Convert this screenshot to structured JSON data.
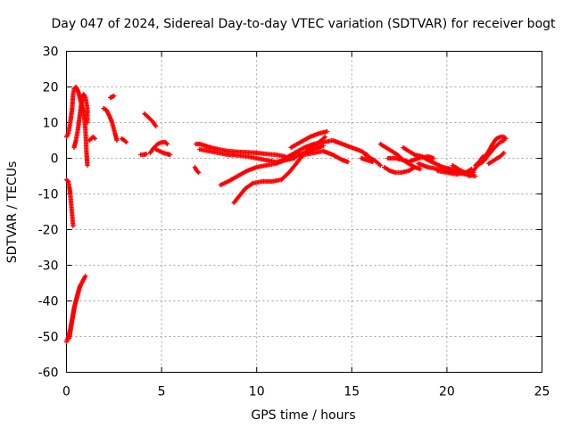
{
  "chart_data": {
    "type": "scatter",
    "title": "Day 047 of 2024, Sidereal Day-to-day VTEC variation (SDTVAR) for receiver bogt",
    "xlabel": "GPS time / hours",
    "ylabel": "SDTVAR / TECUs",
    "xlim": [
      0,
      25
    ],
    "ylim": [
      -60,
      30
    ],
    "xticks": [
      "0",
      "5",
      "10",
      "15",
      "20",
      "25"
    ],
    "yticks": [
      "30",
      "20",
      "10",
      "0",
      "-10",
      "-20",
      "-30",
      "-40",
      "-50",
      "-60"
    ],
    "grid": true,
    "marker": "plus",
    "color": "#ff0000",
    "tracks": [
      {
        "points": [
          [
            0.0,
            -51.5
          ],
          [
            0.1,
            -50
          ],
          [
            0.2,
            -48
          ],
          [
            0.3,
            -45
          ],
          [
            0.4,
            -42
          ],
          [
            0.5,
            -40
          ],
          [
            0.6,
            -38
          ],
          [
            0.7,
            -36
          ],
          [
            0.8,
            -35
          ],
          [
            0.9,
            -34
          ],
          [
            1.0,
            -33
          ]
        ]
      },
      {
        "points": [
          [
            0.15,
            -50.5
          ],
          [
            0.25,
            -47
          ],
          [
            0.35,
            -44
          ],
          [
            0.45,
            -41
          ],
          [
            0.55,
            -39
          ],
          [
            0.65,
            -37
          ],
          [
            0.75,
            -35.5
          ]
        ]
      },
      {
        "points": [
          [
            0.0,
            -6
          ],
          [
            0.1,
            -6.5
          ],
          [
            0.15,
            -8
          ],
          [
            0.2,
            -10
          ],
          [
            0.25,
            -13
          ],
          [
            0.3,
            -16
          ],
          [
            0.35,
            -19
          ]
        ]
      },
      {
        "points": [
          [
            0.0,
            6
          ],
          [
            0.1,
            7
          ],
          [
            0.2,
            10
          ],
          [
            0.3,
            14
          ],
          [
            0.35,
            18
          ],
          [
            0.4,
            19.5
          ],
          [
            0.5,
            20
          ],
          [
            0.6,
            19
          ],
          [
            0.7,
            17
          ],
          [
            0.8,
            15
          ],
          [
            0.9,
            13
          ],
          [
            1.0,
            8
          ],
          [
            1.05,
            2
          ],
          [
            1.1,
            -2
          ]
        ]
      },
      {
        "points": [
          [
            0.4,
            3
          ],
          [
            0.5,
            5
          ],
          [
            0.6,
            8
          ],
          [
            0.7,
            12
          ],
          [
            0.8,
            16
          ],
          [
            0.9,
            18
          ],
          [
            1.0,
            17
          ],
          [
            1.1,
            14
          ],
          [
            1.1,
            10
          ]
        ]
      },
      {
        "points": [
          [
            1.2,
            5
          ],
          [
            1.3,
            5.5
          ],
          [
            1.4,
            6
          ],
          [
            1.5,
            5.5
          ]
        ]
      },
      {
        "points": [
          [
            1.95,
            14
          ],
          [
            2.1,
            13.5
          ],
          [
            2.25,
            12
          ],
          [
            2.4,
            10
          ],
          [
            2.55,
            7
          ],
          [
            2.65,
            5
          ]
        ]
      },
      {
        "points": [
          [
            2.3,
            17
          ],
          [
            2.4,
            17.2
          ],
          [
            2.5,
            17.5
          ]
        ]
      },
      {
        "points": [
          [
            2.9,
            5.5
          ],
          [
            3.05,
            5
          ],
          [
            3.15,
            4.5
          ]
        ]
      },
      {
        "points": [
          [
            4.1,
            12.5
          ],
          [
            4.3,
            11.5
          ],
          [
            4.5,
            10.5
          ],
          [
            4.7,
            9
          ]
        ]
      },
      {
        "points": [
          [
            3.9,
            1
          ],
          [
            4.05,
            1
          ],
          [
            4.2,
            1.2
          ]
        ]
      },
      {
        "points": [
          [
            4.4,
            1.5
          ],
          [
            4.6,
            3
          ],
          [
            4.8,
            4
          ],
          [
            5.0,
            4.5
          ],
          [
            5.2,
            4.5
          ],
          [
            5.3,
            4
          ]
        ]
      },
      {
        "points": [
          [
            4.7,
            2.5
          ],
          [
            4.9,
            2
          ],
          [
            5.1,
            1.5
          ],
          [
            5.3,
            1.2
          ],
          [
            5.45,
            1
          ]
        ]
      },
      {
        "points": [
          [
            6.75,
            -2.5
          ],
          [
            6.85,
            -3.5
          ],
          [
            6.95,
            -4
          ]
        ]
      },
      {
        "points": [
          [
            6.8,
            4
          ],
          [
            7.0,
            4
          ],
          [
            7.3,
            3.5
          ],
          [
            7.6,
            3
          ],
          [
            8.0,
            2.5
          ],
          [
            8.5,
            2
          ],
          [
            9.0,
            1.8
          ],
          [
            9.5,
            1.7
          ],
          [
            10.0,
            1.5
          ],
          [
            10.5,
            1.2
          ],
          [
            11.0,
            1
          ],
          [
            11.5,
            0.5
          ]
        ]
      },
      {
        "points": [
          [
            7.0,
            2.5
          ],
          [
            7.5,
            2
          ],
          [
            8.0,
            1.5
          ],
          [
            8.5,
            1
          ],
          [
            9.0,
            0.8
          ],
          [
            9.5,
            0.5
          ],
          [
            10.0,
            0
          ],
          [
            10.5,
            -0.5
          ],
          [
            11.0,
            -1
          ],
          [
            11.5,
            -0.5
          ],
          [
            12.0,
            0
          ]
        ]
      },
      {
        "points": [
          [
            8.1,
            -7.5
          ],
          [
            8.5,
            -6.5
          ],
          [
            9.0,
            -5
          ],
          [
            9.5,
            -3.5
          ],
          [
            10.0,
            -2.5
          ],
          [
            10.5,
            -2
          ],
          [
            11.0,
            -1.5
          ],
          [
            11.5,
            -0.5
          ],
          [
            12.0,
            0.5
          ],
          [
            12.5,
            1.5
          ],
          [
            13.0,
            2.5
          ],
          [
            13.5,
            3.5
          ]
        ]
      },
      {
        "points": [
          [
            8.8,
            -12.5
          ],
          [
            9.1,
            -10.5
          ],
          [
            9.4,
            -8.5
          ],
          [
            9.8,
            -7
          ],
          [
            10.3,
            -6.5
          ],
          [
            10.8,
            -6.5
          ],
          [
            11.3,
            -6
          ],
          [
            11.7,
            -4
          ],
          [
            12.0,
            -2
          ],
          [
            12.3,
            0
          ],
          [
            12.6,
            2
          ],
          [
            13.0,
            3.5
          ],
          [
            13.4,
            5
          ],
          [
            13.6,
            6
          ]
        ]
      },
      {
        "points": [
          [
            11.5,
            0
          ],
          [
            12.0,
            1.5
          ],
          [
            12.5,
            3
          ],
          [
            13.0,
            4
          ],
          [
            13.5,
            4.5
          ],
          [
            14.0,
            5
          ],
          [
            14.5,
            4
          ],
          [
            15.0,
            3
          ],
          [
            15.5,
            2
          ],
          [
            15.8,
            1
          ]
        ]
      },
      {
        "points": [
          [
            12.5,
            1
          ],
          [
            13.0,
            1.5
          ],
          [
            13.5,
            2
          ],
          [
            14.0,
            1
          ],
          [
            14.5,
            -0.5
          ],
          [
            14.8,
            -1
          ]
        ]
      },
      {
        "points": [
          [
            11.8,
            3
          ],
          [
            12.3,
            4.5
          ],
          [
            12.8,
            6
          ],
          [
            13.3,
            7
          ],
          [
            13.7,
            7.5
          ]
        ]
      },
      {
        "points": [
          [
            15.7,
            1
          ],
          [
            16.0,
            0
          ],
          [
            16.3,
            -1
          ],
          [
            16.5,
            -2
          ]
        ]
      },
      {
        "points": [
          [
            15.5,
            0
          ],
          [
            15.8,
            -0.5
          ],
          [
            16.1,
            -1
          ]
        ]
      },
      {
        "points": [
          [
            16.5,
            4
          ],
          [
            16.8,
            3
          ],
          [
            17.1,
            2
          ],
          [
            17.4,
            1
          ],
          [
            17.7,
            -0.5
          ],
          [
            18.0,
            -1.5
          ],
          [
            18.3,
            -2.5
          ],
          [
            18.6,
            -3
          ]
        ]
      },
      {
        "points": [
          [
            16.7,
            -2.5
          ],
          [
            17.0,
            -3.5
          ],
          [
            17.3,
            -4
          ],
          [
            17.6,
            -4
          ],
          [
            18.0,
            -3.5
          ],
          [
            18.3,
            -2.5
          ]
        ]
      },
      {
        "points": [
          [
            16.9,
            0
          ],
          [
            17.3,
            0
          ],
          [
            17.7,
            -0.5
          ],
          [
            18.0,
            -1
          ],
          [
            18.5,
            0
          ],
          [
            19.0,
            0.5
          ],
          [
            19.3,
            0
          ]
        ]
      },
      {
        "points": [
          [
            17.7,
            3
          ],
          [
            18.0,
            2
          ],
          [
            18.3,
            1
          ],
          [
            18.7,
            0.5
          ],
          [
            19.0,
            -0.5
          ],
          [
            19.4,
            -1.5
          ],
          [
            19.8,
            -2.5
          ],
          [
            20.2,
            -3
          ],
          [
            20.6,
            -3.5
          ],
          [
            21.0,
            -4
          ],
          [
            21.4,
            -4
          ]
        ]
      },
      {
        "points": [
          [
            18.5,
            -1.5
          ],
          [
            19.0,
            -2.5
          ],
          [
            19.5,
            -3
          ],
          [
            20.0,
            -3.5
          ],
          [
            20.5,
            -4
          ],
          [
            21.0,
            -4.5
          ],
          [
            21.5,
            -5
          ]
        ]
      },
      {
        "points": [
          [
            19.5,
            -3.5
          ],
          [
            20.0,
            -4
          ],
          [
            20.5,
            -4.5
          ],
          [
            21.0,
            -4
          ],
          [
            21.3,
            -3
          ]
        ]
      },
      {
        "points": [
          [
            20.3,
            -2
          ],
          [
            20.6,
            -3
          ],
          [
            20.9,
            -4
          ],
          [
            21.2,
            -5
          ],
          [
            21.4,
            -3.5
          ],
          [
            21.6,
            -2
          ],
          [
            21.9,
            -1
          ],
          [
            22.2,
            1
          ],
          [
            22.5,
            3
          ],
          [
            22.8,
            4.5
          ],
          [
            23.0,
            5
          ]
        ]
      },
      {
        "points": [
          [
            21.8,
            -0.5
          ],
          [
            22.0,
            0.5
          ],
          [
            22.2,
            2
          ],
          [
            22.4,
            4
          ],
          [
            22.6,
            5.5
          ],
          [
            22.8,
            6
          ],
          [
            23.0,
            6
          ],
          [
            23.1,
            5.5
          ]
        ]
      },
      {
        "points": [
          [
            22.2,
            -1.5
          ],
          [
            22.5,
            -0.5
          ],
          [
            22.8,
            0.5
          ],
          [
            23.0,
            1.5
          ]
        ]
      },
      {
        "points": [
          [
            21.5,
            -2
          ],
          [
            21.7,
            -1
          ],
          [
            21.9,
            0.5
          ]
        ]
      }
    ]
  }
}
